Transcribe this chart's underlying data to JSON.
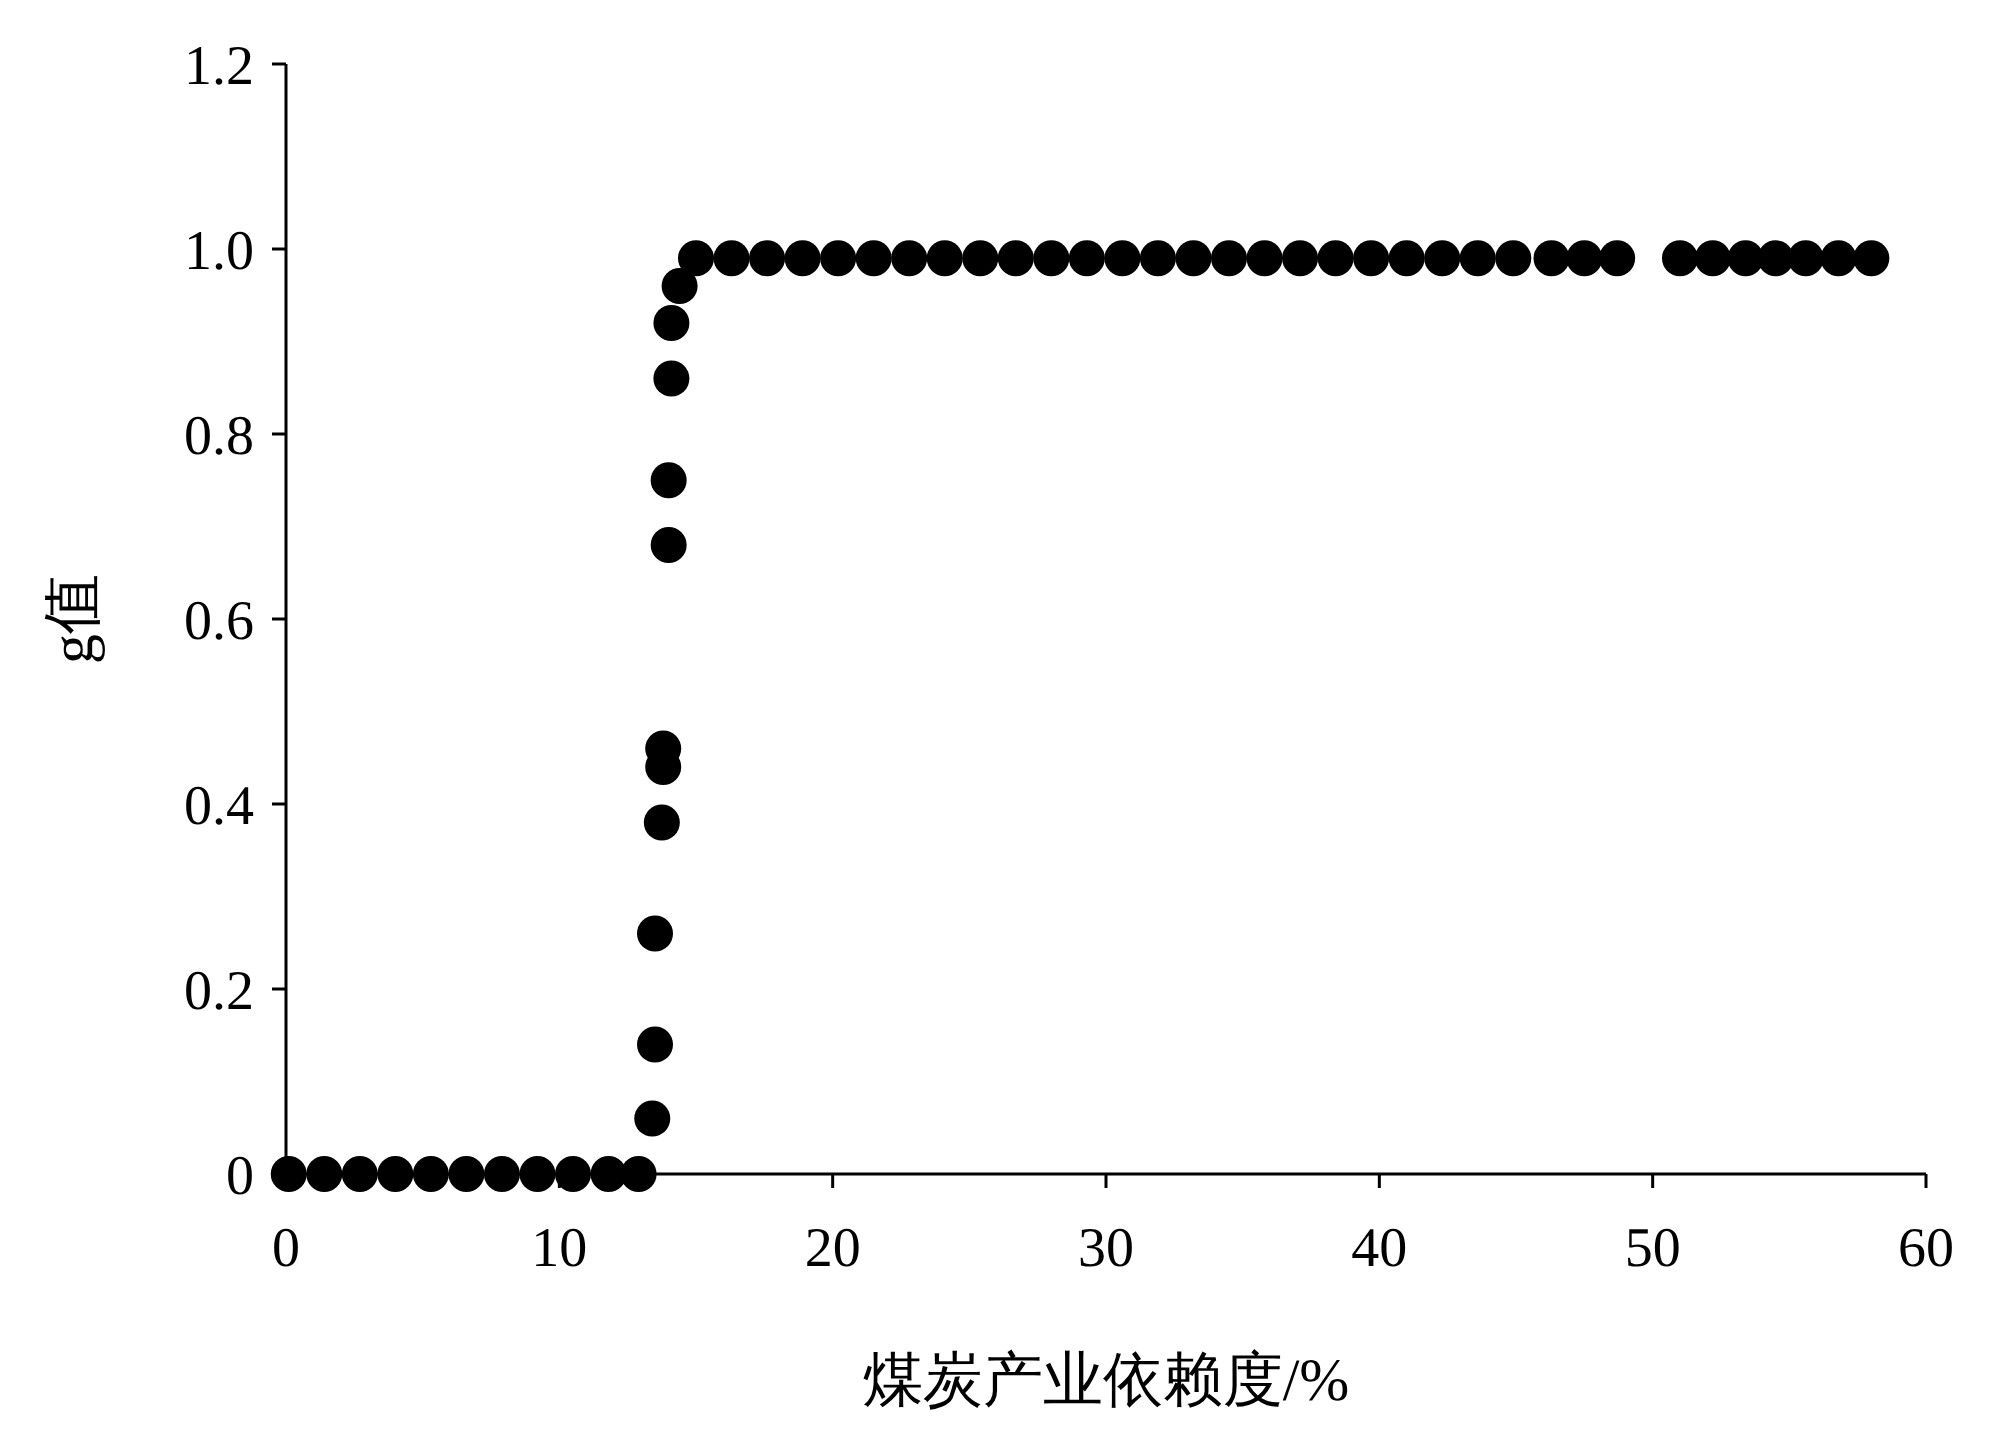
{
  "chart_data": {
    "type": "scatter",
    "xlabel": "煤炭产业依赖度/%",
    "ylabel": "g值",
    "marker": "circle",
    "grid": false,
    "xlim": [
      0,
      60
    ],
    "xticks": [
      0,
      10,
      20,
      30,
      40,
      50,
      60
    ],
    "ylim": [
      0,
      1.2
    ],
    "yticks": [
      0,
      0.2,
      0.4,
      0.6,
      0.8,
      {
        "value": 1,
        "label": "1.0"
      },
      1.2
    ],
    "series": [
      {
        "color": "#000000",
        "x": [
          0.1,
          1.4,
          2.7,
          4.0,
          5.3,
          6.6,
          7.9,
          9.2,
          10.5,
          11.8,
          12.9
        ],
        "values": [
          0,
          0,
          0,
          0,
          0,
          0,
          0,
          0,
          0,
          0,
          0
        ]
      },
      {
        "color": "#000000",
        "x": [
          13.4,
          13.5,
          13.5,
          13.75,
          13.8,
          13.8,
          14.0,
          14.0,
          14.1,
          14.1,
          14.4
        ],
        "values": [
          0.06,
          0.14,
          0.26,
          0.38,
          0.44,
          0.46,
          0.68,
          0.75,
          0.86,
          0.92,
          0.96
        ]
      },
      {
        "color": "#000000",
        "x": [
          15.0,
          16.3,
          17.6,
          18.9,
          20.2,
          21.5,
          22.8,
          24.1,
          25.4,
          26.7,
          28.0,
          29.3,
          30.6,
          31.9,
          33.2,
          34.5,
          35.8,
          37.1,
          38.4,
          39.7,
          41.0,
          42.3,
          43.6,
          44.9,
          46.3,
          47.5,
          48.7,
          51.0,
          52.2,
          53.4,
          54.5,
          55.6,
          56.8,
          58.0
        ],
        "values": [
          0.99,
          0.99,
          0.99,
          0.99,
          0.99,
          0.99,
          0.99,
          0.99,
          0.99,
          0.99,
          0.99,
          0.99,
          0.99,
          0.99,
          0.99,
          0.99,
          0.99,
          0.99,
          0.99,
          0.99,
          0.99,
          0.99,
          0.99,
          0.99,
          0.99,
          0.99,
          0.99,
          0.99,
          0.99,
          0.99,
          0.99,
          0.99,
          0.99,
          0.99
        ]
      }
    ]
  }
}
